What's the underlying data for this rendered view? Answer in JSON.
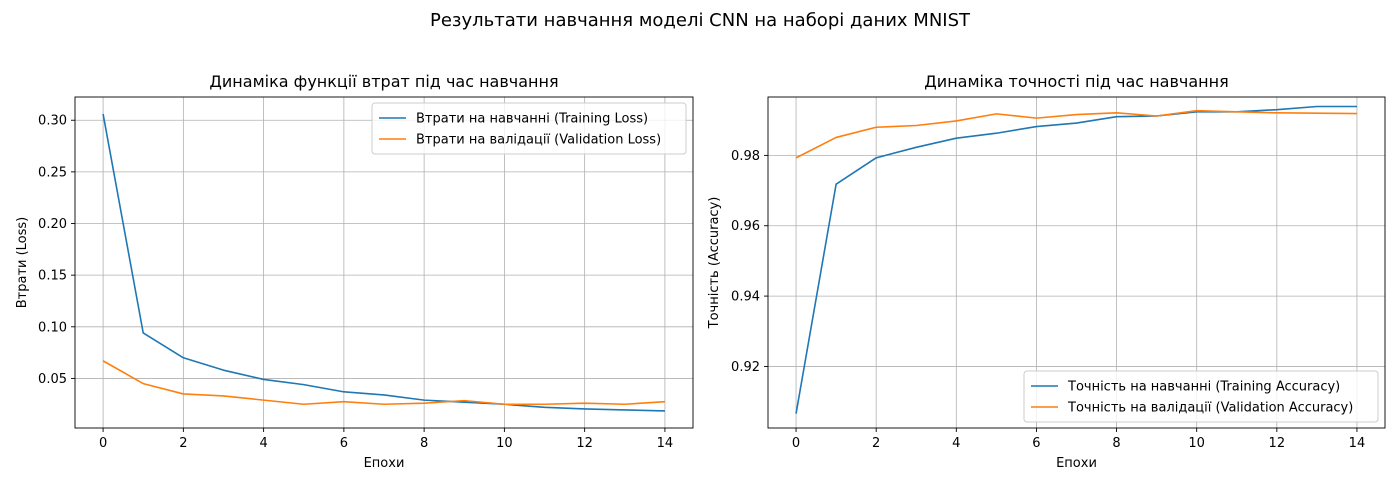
{
  "figure_title": "Результати навчання моделі CNN на наборі даних MNIST",
  "colors": {
    "train": "#1f77b4",
    "val": "#ff7f0e",
    "grid": "#b0b0b0"
  },
  "chart_data": [
    {
      "type": "line",
      "title": "Динаміка функції втрат під час навчання",
      "xlabel": "Епохи",
      "ylabel": "Втрати (Loss)",
      "x": [
        0,
        1,
        2,
        3,
        4,
        5,
        6,
        7,
        8,
        9,
        10,
        11,
        12,
        13,
        14
      ],
      "xlim": [
        -0.7,
        14.7
      ],
      "ylim": [
        0.002,
        0.3225
      ],
      "xticks": [
        0,
        2,
        4,
        6,
        8,
        10,
        12,
        14
      ],
      "yticks": [
        0.05,
        0.1,
        0.15,
        0.2,
        0.25,
        0.3
      ],
      "ytick_labels": [
        "0.05",
        "0.10",
        "0.15",
        "0.20",
        "0.25",
        "0.30"
      ],
      "grid": true,
      "legend_position": "upper right",
      "series": [
        {
          "name": "Втрати на навчанні (Training Loss)",
          "color_key": "train",
          "values": [
            0.306,
            0.094,
            0.07,
            0.058,
            0.049,
            0.044,
            0.037,
            0.034,
            0.029,
            0.027,
            0.025,
            0.022,
            0.0205,
            0.0195,
            0.0185
          ]
        },
        {
          "name": "Втрати на валідації (Validation Loss)",
          "color_key": "val",
          "values": [
            0.067,
            0.045,
            0.035,
            0.033,
            0.029,
            0.025,
            0.0275,
            0.025,
            0.026,
            0.0285,
            0.025,
            0.025,
            0.026,
            0.025,
            0.0275
          ]
        }
      ]
    },
    {
      "type": "line",
      "title": "Динаміка точності під час навчання",
      "xlabel": "Епохи",
      "ylabel": "Точність (Accuracy)",
      "x": [
        0,
        1,
        2,
        3,
        4,
        5,
        6,
        7,
        8,
        9,
        10,
        11,
        12,
        13,
        14
      ],
      "xlim": [
        -0.7,
        14.7
      ],
      "ylim": [
        0.9025,
        0.9966
      ],
      "xticks": [
        0,
        2,
        4,
        6,
        8,
        10,
        12,
        14
      ],
      "yticks": [
        0.92,
        0.94,
        0.96,
        0.98
      ],
      "ytick_labels": [
        "0.92",
        "0.94",
        "0.96",
        "0.98"
      ],
      "grid": true,
      "legend_position": "lower right",
      "series": [
        {
          "name": "Точність на навчанні (Training Accuracy)",
          "color_key": "train",
          "values": [
            0.9066,
            0.9718,
            0.9793,
            0.9823,
            0.9849,
            0.9863,
            0.9882,
            0.9892,
            0.991,
            0.9912,
            0.9924,
            0.9924,
            0.993,
            0.9939,
            0.9939
          ]
        },
        {
          "name": "Точність на валідації (Validation Accuracy)",
          "color_key": "val",
          "values": [
            0.9793,
            0.9851,
            0.988,
            0.9885,
            0.9898,
            0.9918,
            0.9906,
            0.9916,
            0.9921,
            0.9912,
            0.9927,
            0.9924,
            0.9921,
            0.992,
            0.9919
          ]
        }
      ]
    }
  ]
}
